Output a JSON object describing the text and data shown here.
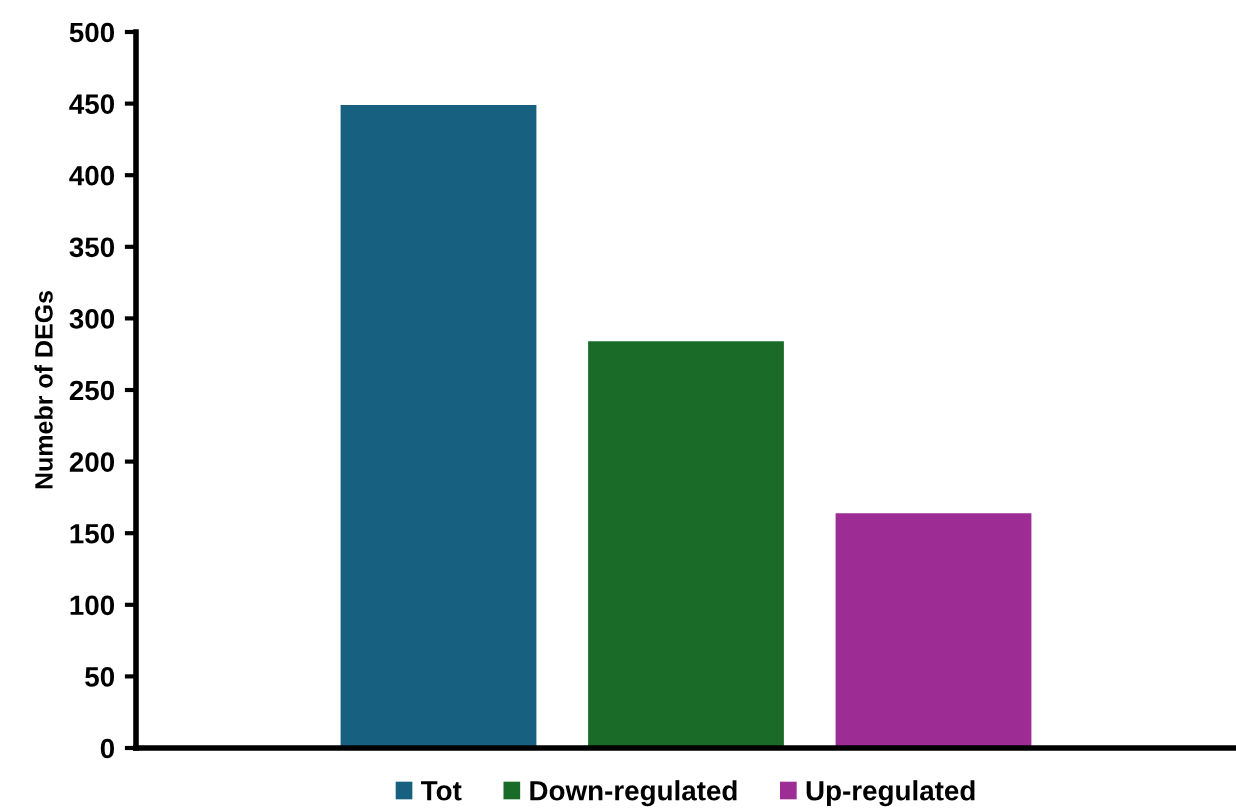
{
  "chart_data": {
    "type": "bar",
    "ylabel": "Numebr of DEGs",
    "categories": [
      null
    ],
    "series": [
      {
        "name": "Tot",
        "color": "#18607f",
        "values": [
          449
        ]
      },
      {
        "name": "Down-regulated",
        "color": "#1b6b28",
        "values": [
          284
        ]
      },
      {
        "name": "Up-regulated",
        "color": "#9e2c95",
        "values": [
          164
        ]
      }
    ],
    "ylim": [
      0,
      500
    ],
    "yticks": [
      0,
      50,
      100,
      150,
      200,
      250,
      300,
      350,
      400,
      450,
      500
    ],
    "grid": false,
    "legend": "bottom"
  }
}
